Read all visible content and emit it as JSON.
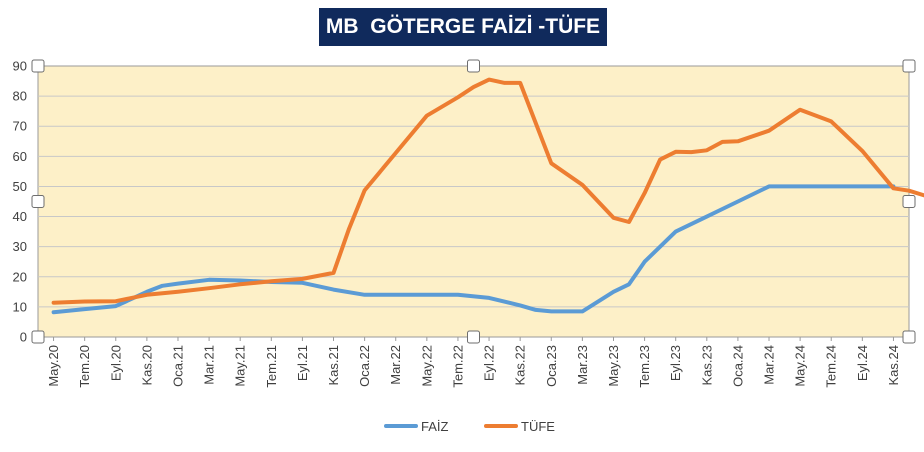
{
  "chart_data": {
    "type": "line",
    "title": "MB  GÖTERGE FAİZİ -TÜFE",
    "x_labels": [
      "May.20",
      "Tem.20",
      "Eyl.20",
      "Kas.20",
      "Oca.21",
      "Mar.21",
      "May.21",
      "Tem.21",
      "Eyl.21",
      "Kas.21",
      "Oca.22",
      "Mar.22",
      "May.22",
      "Tem.22",
      "Eyl.22",
      "Kas.22",
      "Oca.23",
      "Mar.23",
      "May.23",
      "Tem.23",
      "Eyl.23",
      "Kas.23",
      "Oca.24",
      "Mar.24",
      "May.24",
      "Tem.24",
      "Eyl.24",
      "Kas.24"
    ],
    "ylim": [
      0,
      90
    ],
    "yticks": [
      0,
      10,
      20,
      30,
      40,
      50,
      60,
      70,
      80,
      90
    ],
    "grid": true,
    "legend": "bottom",
    "plot_background": "#fdf0c8",
    "series": [
      {
        "name": "FAİZ",
        "color": "#5b9bd5",
        "points": [
          [
            0,
            8.25
          ],
          [
            1,
            9.25
          ],
          [
            2,
            10.25
          ],
          [
            3,
            15
          ],
          [
            3.5,
            17
          ],
          [
            4,
            17.75
          ],
          [
            5,
            19
          ],
          [
            6,
            18.75
          ],
          [
            7,
            18.25
          ],
          [
            8,
            18
          ],
          [
            9,
            15.75
          ],
          [
            10,
            14
          ],
          [
            11,
            14
          ],
          [
            12,
            14
          ],
          [
            13,
            14
          ],
          [
            14,
            13
          ],
          [
            15,
            10.5
          ],
          [
            15.5,
            9
          ],
          [
            16,
            8.5
          ],
          [
            17,
            8.5
          ],
          [
            18,
            15
          ],
          [
            18.5,
            17.5
          ],
          [
            19,
            25
          ],
          [
            20,
            35
          ],
          [
            21,
            40
          ],
          [
            21.5,
            42.5
          ],
          [
            22,
            45
          ],
          [
            23,
            50
          ],
          [
            24,
            50
          ],
          [
            25,
            50
          ],
          [
            26,
            50
          ],
          [
            27,
            50
          ]
        ]
      },
      {
        "name": "TÜFE",
        "color": "#ed7d31",
        "points": [
          [
            0,
            11.4
          ],
          [
            1,
            11.8
          ],
          [
            2,
            11.9
          ],
          [
            3,
            14
          ],
          [
            4,
            15
          ],
          [
            5,
            16.2
          ],
          [
            6,
            17.5
          ],
          [
            7,
            18.5
          ],
          [
            8,
            19.3
          ],
          [
            9,
            21.3
          ],
          [
            9.5,
            36
          ],
          [
            10,
            48.7
          ],
          [
            11,
            61.1
          ],
          [
            12,
            73.5
          ],
          [
            13,
            79.6
          ],
          [
            13.5,
            83
          ],
          [
            14,
            85.5
          ],
          [
            14.5,
            84.4
          ],
          [
            15,
            84.4
          ],
          [
            16,
            57.7
          ],
          [
            17,
            50.5
          ],
          [
            18,
            39.6
          ],
          [
            18.5,
            38.2
          ],
          [
            19,
            47.8
          ],
          [
            19.5,
            58.9
          ],
          [
            20,
            61.5
          ],
          [
            20.5,
            61.4
          ],
          [
            21,
            62
          ],
          [
            21.5,
            64.8
          ],
          [
            22,
            65
          ],
          [
            23,
            68.5
          ],
          [
            24,
            75.5
          ],
          [
            25,
            71.6
          ],
          [
            26,
            61.8
          ],
          [
            27,
            49.4
          ],
          [
            27.5,
            48.6
          ],
          [
            28,
            47
          ]
        ]
      }
    ]
  }
}
